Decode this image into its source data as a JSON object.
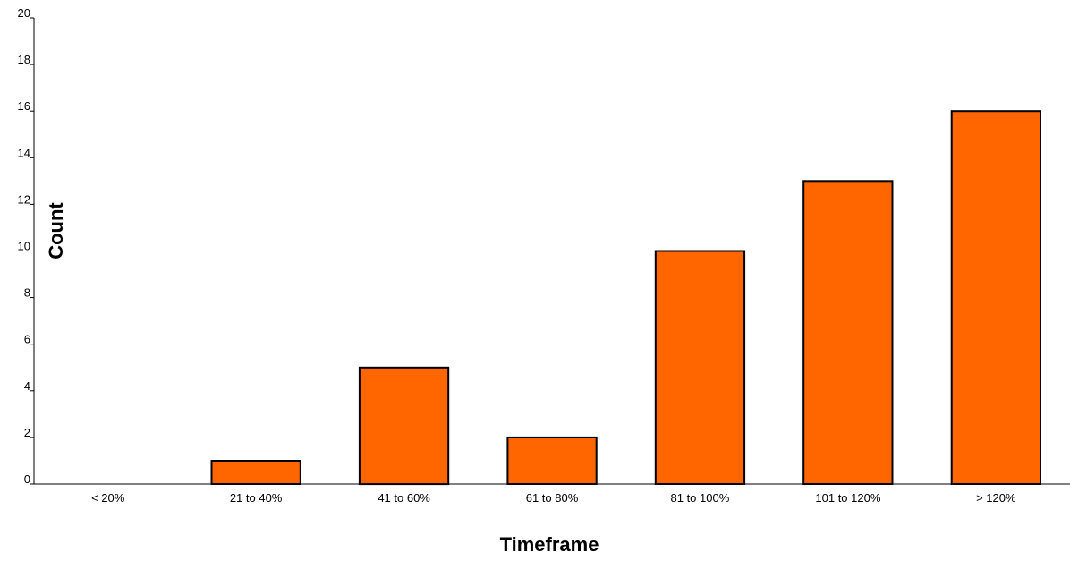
{
  "chart_data": {
    "type": "bar",
    "title": "",
    "xlabel": "Timeframe",
    "ylabel": "Count",
    "categories": [
      "< 20%",
      "21 to 40%",
      "41 to 60%",
      "61 to 80%",
      "81 to 100%",
      "101 to 120%",
      "> 120%"
    ],
    "values": [
      0,
      1,
      5,
      2,
      10,
      13,
      16
    ],
    "ylim": [
      0,
      20
    ],
    "yticks": [
      "0",
      "2",
      "4",
      "6",
      "8",
      "10",
      "12",
      "14",
      "16",
      "18",
      "20"
    ],
    "grid": false,
    "legend": "none",
    "bar_color": "#FF6600",
    "bar_edge_color": "#000000"
  }
}
